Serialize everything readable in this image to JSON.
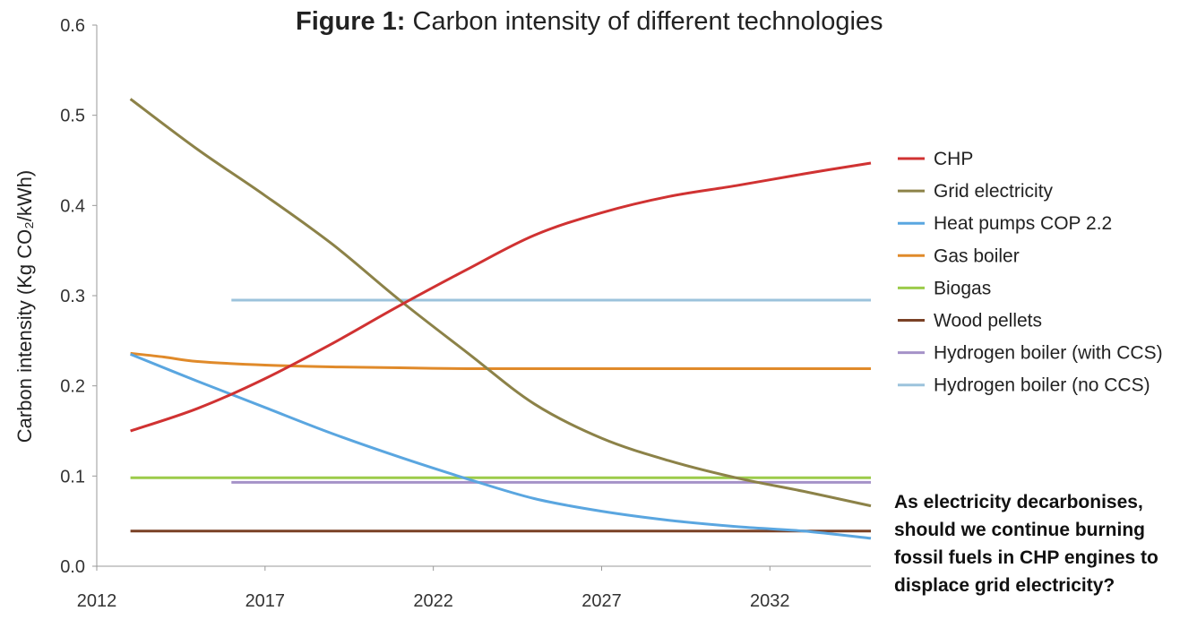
{
  "chart_data": {
    "type": "line",
    "title": {
      "bold": "Figure 1:",
      "rest": " Carbon intensity of different technologies"
    },
    "ylabel": "Carbon intensity (Kg CO₂/kWh)",
    "xlabel": "",
    "xlim": [
      2012,
      2035
    ],
    "ylim": [
      0,
      0.6
    ],
    "x_ticks": [
      2012,
      2017,
      2022,
      2027,
      2032
    ],
    "y_ticks": [
      {
        "value": 0.0,
        "label": "0.0"
      },
      {
        "value": 0.1,
        "label": "0.1"
      },
      {
        "value": 0.2,
        "label": "0.2"
      },
      {
        "value": 0.3,
        "label": "0.3"
      },
      {
        "value": 0.4,
        "label": "0.4"
      },
      {
        "value": 0.5,
        "label": "0.5"
      },
      {
        "value": 0.6,
        "label": "0.6"
      }
    ],
    "grid": false,
    "legend_position": "right",
    "series": [
      {
        "name": "CHP",
        "color": "#d03232",
        "x": [
          2013,
          2015,
          2017,
          2019,
          2021,
          2023,
          2025,
          2027,
          2029,
          2031,
          2033,
          2035
        ],
        "y": [
          0.15,
          0.175,
          0.208,
          0.247,
          0.289,
          0.329,
          0.367,
          0.392,
          0.41,
          0.422,
          0.435,
          0.447
        ]
      },
      {
        "name": "Grid electricity",
        "color": "#8c8248",
        "x": [
          2013,
          2015,
          2017,
          2019,
          2021,
          2023,
          2025,
          2027,
          2029,
          2031,
          2033,
          2035
        ],
        "y": [
          0.518,
          0.462,
          0.411,
          0.357,
          0.295,
          0.237,
          0.18,
          0.142,
          0.117,
          0.098,
          0.083,
          0.067
        ]
      },
      {
        "name": "Heat pumps COP 2.2",
        "color": "#5aa6e0",
        "x": [
          2013,
          2015,
          2017,
          2019,
          2021,
          2023,
          2025,
          2027,
          2029,
          2031,
          2033,
          2035
        ],
        "y": [
          0.235,
          0.205,
          0.176,
          0.147,
          0.121,
          0.097,
          0.075,
          0.061,
          0.051,
          0.044,
          0.039,
          0.031
        ]
      },
      {
        "name": "Gas boiler",
        "color": "#e08a2a",
        "x": [
          2013,
          2014,
          2015,
          2017,
          2019,
          2021,
          2023,
          2025,
          2027,
          2029,
          2031,
          2033,
          2035
        ],
        "y": [
          0.236,
          0.232,
          0.227,
          0.223,
          0.221,
          0.22,
          0.219,
          0.219,
          0.219,
          0.219,
          0.219,
          0.219,
          0.219
        ]
      },
      {
        "name": "Biogas",
        "color": "#9ccb4a",
        "x": [
          2013,
          2035
        ],
        "y": [
          0.098,
          0.098
        ]
      },
      {
        "name": "Wood pellets",
        "color": "#7a4126",
        "x": [
          2013,
          2035
        ],
        "y": [
          0.039,
          0.039
        ]
      },
      {
        "name": "Hydrogen boiler (with CCS)",
        "color": "#a592c8",
        "x": [
          2016,
          2035
        ],
        "y": [
          0.093,
          0.093
        ]
      },
      {
        "name": "Hydrogen boiler (no CCS)",
        "color": "#9cc3dc",
        "x": [
          2016,
          2035
        ],
        "y": [
          0.295,
          0.295
        ]
      }
    ]
  },
  "callout": {
    "lines": [
      "As electricity decarbonises,",
      "should we continue burning",
      "fossil fuels in CHP engines to",
      "displace grid electricity?"
    ]
  }
}
